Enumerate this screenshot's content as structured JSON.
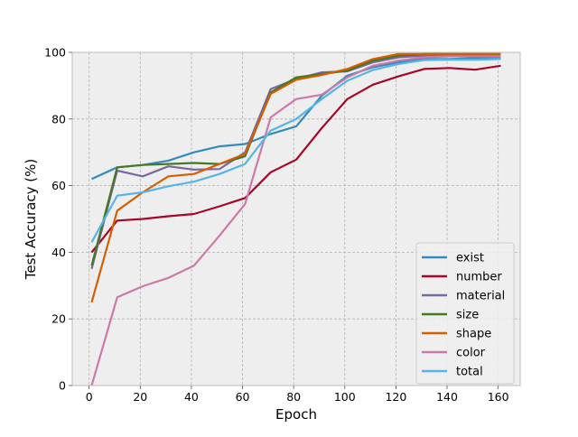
{
  "chart_data": {
    "type": "line",
    "title": "",
    "xlabel": "Epoch",
    "ylabel": "Test Accuracy (%)",
    "xlim": [
      -6.6,
      168.6
    ],
    "ylim": [
      0,
      100
    ],
    "xticks": [
      0,
      20,
      40,
      60,
      80,
      100,
      120,
      140,
      160
    ],
    "yticks": [
      0,
      20,
      40,
      60,
      80,
      100
    ],
    "grid": true,
    "grid_style": "dashed",
    "background": "#eeeeee",
    "legend_position": "lower-right",
    "x": [
      1,
      11,
      21,
      31,
      41,
      51,
      61,
      71,
      81,
      91,
      101,
      111,
      121,
      131,
      141,
      151,
      161
    ],
    "series": [
      {
        "name": "exist",
        "color": "#348abd",
        "values": [
          62,
          65.5,
          66.2,
          67.5,
          70,
          71.8,
          72.5,
          75.5,
          77.8,
          87,
          93,
          95.5,
          97,
          98,
          98,
          98.3,
          98.5
        ]
      },
      {
        "name": "number",
        "color": "#a60628",
        "values": [
          40,
          49.5,
          50,
          50.8,
          51.5,
          53.8,
          56.3,
          64,
          67.8,
          77.3,
          86,
          90.3,
          92.8,
          95,
          95.3,
          94.8,
          96
        ]
      },
      {
        "name": "material",
        "color": "#7a68a6",
        "values": [
          35,
          64.5,
          62.8,
          65.8,
          64.8,
          65,
          70,
          89,
          92,
          94,
          94.3,
          97,
          98.5,
          99,
          99,
          99,
          99
        ]
      },
      {
        "name": "size",
        "color": "#467821",
        "values": [
          36,
          65.5,
          66.2,
          66.5,
          66.8,
          66.5,
          68.8,
          88,
          92.5,
          93.5,
          94.5,
          97.5,
          99,
          99.5,
          99.5,
          99.5,
          99.5
        ]
      },
      {
        "name": "shape",
        "color": "#d55e00",
        "values": [
          25,
          52.5,
          58,
          62.8,
          63.5,
          66.5,
          69.5,
          87.5,
          91.8,
          93.2,
          95,
          98,
          99.5,
          99.5,
          99.5,
          99.5,
          99.5
        ]
      },
      {
        "name": "color",
        "color": "#cc79a7",
        "values": [
          0,
          26.5,
          29.8,
          32.3,
          36,
          45,
          54.5,
          80.5,
          86,
          87.3,
          92.5,
          96,
          97.5,
          98.5,
          98.8,
          98.8,
          98.8
        ]
      },
      {
        "name": "total",
        "color": "#56b4e9",
        "values": [
          43,
          57,
          58,
          59.8,
          61.2,
          63.5,
          66.5,
          76.5,
          80,
          86,
          91.5,
          94.7,
          96.5,
          97.7,
          97.8,
          97.8,
          98
        ]
      }
    ]
  }
}
